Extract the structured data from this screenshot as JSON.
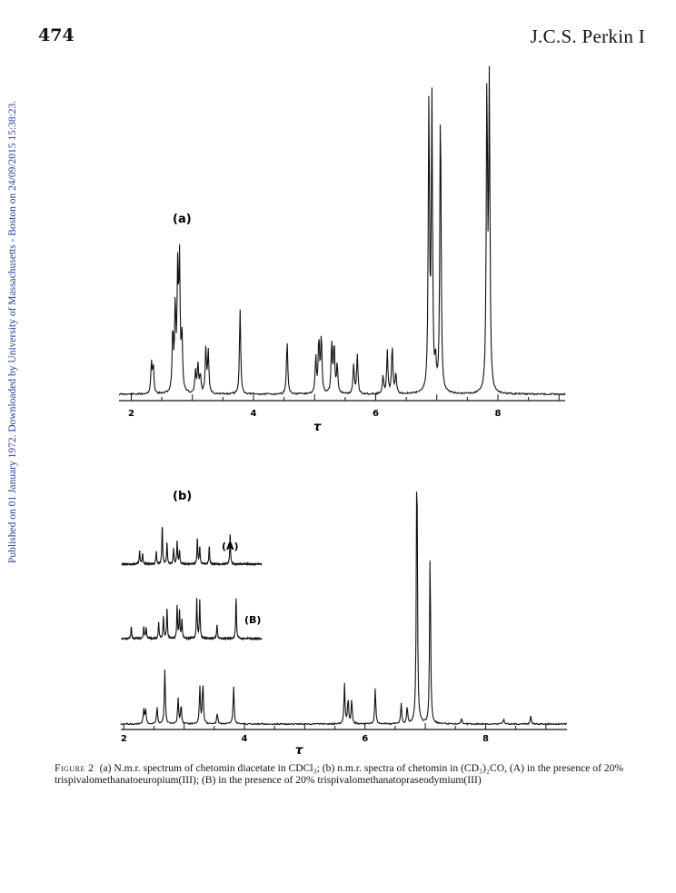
{
  "header": {
    "page_number": "474",
    "journal": "J.C.S. Perkin I"
  },
  "watermark": "Published on 01 January 1972. Downloaded by University of Massachusetts - Boston on 24/09/2015 15:38:23.",
  "figure": {
    "panel_a_label": "(a)",
    "panel_b_label": "(b)",
    "trace_A_label": "(A)",
    "trace_B_label": "(B)",
    "axis_symbol": "τ",
    "axis_ticks": [
      "2",
      "4",
      "6",
      "8"
    ]
  },
  "caption": {
    "label": "Figure 2",
    "text": "(a) N.m.r. spectrum of chetomin diacetate in CDCl₃; (b) n.m.r. spectra of chetomin in (CD₃)₂CO, (A) in the presence of 20% trispivalomethanatoeuropium(III); (B) in the presence of 20% trispivalomethanatopraseodymium(III)"
  },
  "chart_data": [
    {
      "type": "line",
      "title": "(a)",
      "xlabel": "τ",
      "x_ticks": [
        2,
        4,
        6,
        8
      ],
      "xlim": [
        1.8,
        9.1
      ],
      "peaks": [
        {
          "x": 2.33,
          "h": 0.1
        },
        {
          "x": 2.36,
          "h": 0.09
        },
        {
          "x": 2.68,
          "h": 0.2
        },
        {
          "x": 2.72,
          "h": 0.27
        },
        {
          "x": 2.76,
          "h": 0.38
        },
        {
          "x": 2.79,
          "h": 0.42
        },
        {
          "x": 2.83,
          "h": 0.18
        },
        {
          "x": 3.05,
          "h": 0.07
        },
        {
          "x": 3.09,
          "h": 0.1
        },
        {
          "x": 3.13,
          "h": 0.06
        },
        {
          "x": 3.22,
          "h": 0.15
        },
        {
          "x": 3.26,
          "h": 0.14
        },
        {
          "x": 3.78,
          "h": 0.28
        },
        {
          "x": 4.55,
          "h": 0.18
        },
        {
          "x": 5.02,
          "h": 0.12
        },
        {
          "x": 5.07,
          "h": 0.18
        },
        {
          "x": 5.11,
          "h": 0.19
        },
        {
          "x": 5.28,
          "h": 0.17
        },
        {
          "x": 5.32,
          "h": 0.16
        },
        {
          "x": 5.37,
          "h": 0.1
        },
        {
          "x": 5.64,
          "h": 0.1
        },
        {
          "x": 5.7,
          "h": 0.13
        },
        {
          "x": 6.12,
          "h": 0.06
        },
        {
          "x": 6.19,
          "h": 0.14
        },
        {
          "x": 6.27,
          "h": 0.16
        },
        {
          "x": 6.33,
          "h": 0.07
        },
        {
          "x": 6.87,
          "h": 0.95
        },
        {
          "x": 6.92,
          "h": 0.95
        },
        {
          "x": 6.98,
          "h": 0.09
        },
        {
          "x": 7.06,
          "h": 0.97
        },
        {
          "x": 7.82,
          "h": 1.0
        },
        {
          "x": 7.86,
          "h": 1.0
        }
      ]
    },
    {
      "type": "line",
      "title": "(b)",
      "xlabel": "τ",
      "x_ticks": [
        2,
        4,
        6,
        8
      ],
      "xlim": [
        1.95,
        9.35
      ],
      "peaks": [
        {
          "x": 2.33,
          "h": 0.05
        },
        {
          "x": 2.36,
          "h": 0.05
        },
        {
          "x": 2.55,
          "h": 0.06
        },
        {
          "x": 2.68,
          "h": 0.19
        },
        {
          "x": 2.9,
          "h": 0.09
        },
        {
          "x": 2.95,
          "h": 0.07
        },
        {
          "x": 3.26,
          "h": 0.13
        },
        {
          "x": 3.31,
          "h": 0.15
        },
        {
          "x": 3.55,
          "h": 0.04
        },
        {
          "x": 3.82,
          "h": 0.13
        },
        {
          "x": 5.66,
          "h": 0.14
        },
        {
          "x": 5.72,
          "h": 0.09
        },
        {
          "x": 5.78,
          "h": 0.09
        },
        {
          "x": 6.17,
          "h": 0.13
        },
        {
          "x": 6.6,
          "h": 0.07
        },
        {
          "x": 6.7,
          "h": 0.06
        },
        {
          "x": 6.86,
          "h": 1.0
        },
        {
          "x": 7.08,
          "h": 0.61
        },
        {
          "x": 7.6,
          "h": 0.02
        },
        {
          "x": 8.3,
          "h": 0.02
        },
        {
          "x": 8.75,
          "h": 0.03
        }
      ]
    },
    {
      "type": "line",
      "title": "(A)",
      "xlim": [
        2.0,
        4.35
      ],
      "peaks": [
        {
          "x": 2.3,
          "h": 0.35
        },
        {
          "x": 2.35,
          "h": 0.28
        },
        {
          "x": 2.58,
          "h": 0.32
        },
        {
          "x": 2.68,
          "h": 1.0
        },
        {
          "x": 2.76,
          "h": 0.55
        },
        {
          "x": 2.87,
          "h": 0.4
        },
        {
          "x": 2.93,
          "h": 0.6
        },
        {
          "x": 2.97,
          "h": 0.35
        },
        {
          "x": 3.27,
          "h": 0.65
        },
        {
          "x": 3.31,
          "h": 0.45
        },
        {
          "x": 3.47,
          "h": 0.45
        },
        {
          "x": 3.82,
          "h": 0.78
        }
      ]
    },
    {
      "type": "line",
      "title": "(B)",
      "xlim": [
        2.0,
        4.35
      ],
      "peaks": [
        {
          "x": 2.16,
          "h": 0.3
        },
        {
          "x": 2.37,
          "h": 0.3
        },
        {
          "x": 2.41,
          "h": 0.28
        },
        {
          "x": 2.62,
          "h": 0.4
        },
        {
          "x": 2.7,
          "h": 0.55
        },
        {
          "x": 2.76,
          "h": 0.75
        },
        {
          "x": 2.93,
          "h": 0.8
        },
        {
          "x": 2.97,
          "h": 0.7
        },
        {
          "x": 3.01,
          "h": 0.45
        },
        {
          "x": 3.26,
          "h": 1.0
        },
        {
          "x": 3.31,
          "h": 0.95
        },
        {
          "x": 3.6,
          "h": 0.35
        },
        {
          "x": 3.92,
          "h": 1.0
        }
      ]
    }
  ]
}
